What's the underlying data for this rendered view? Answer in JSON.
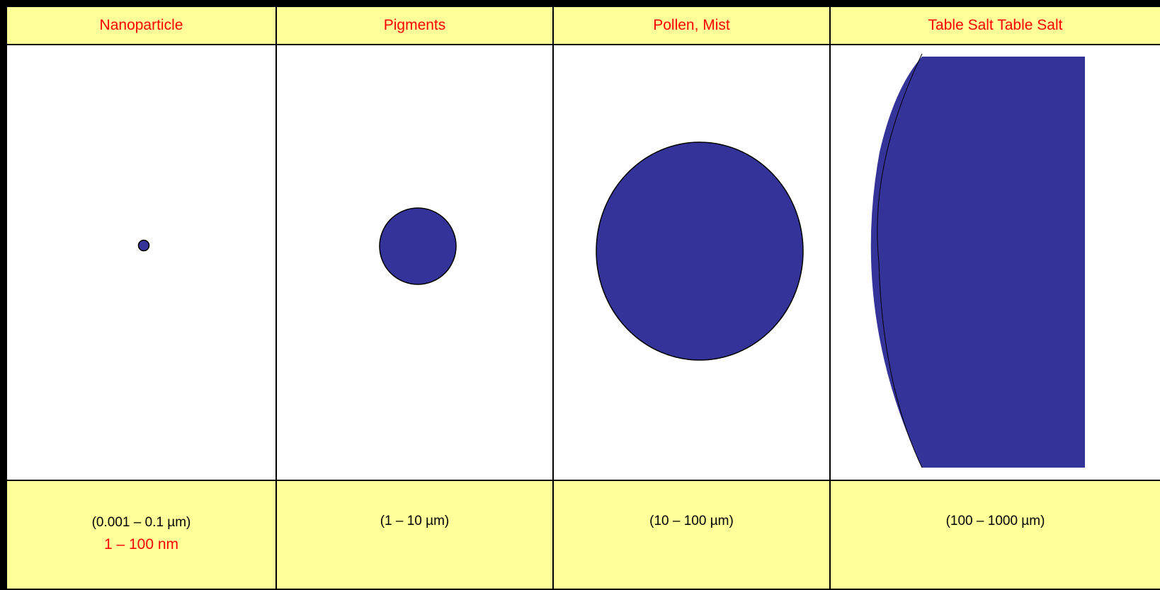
{
  "columns": [
    {
      "title": "Nanoparticle",
      "range": "(0.001 – 0.1 µm)",
      "nm": "1 – 100 nm"
    },
    {
      "title": "Pigments",
      "range": "(1 – 10 µm)"
    },
    {
      "title": "Pollen, Mist",
      "range": "(10 – 100 µm)"
    },
    {
      "title": "Table Salt Table Salt",
      "range": "(100 – 1000 µm)"
    }
  ],
  "colors": {
    "header_fill": "#ffff99",
    "header_text": "#ff0000",
    "particle_fill": "#333399"
  }
}
